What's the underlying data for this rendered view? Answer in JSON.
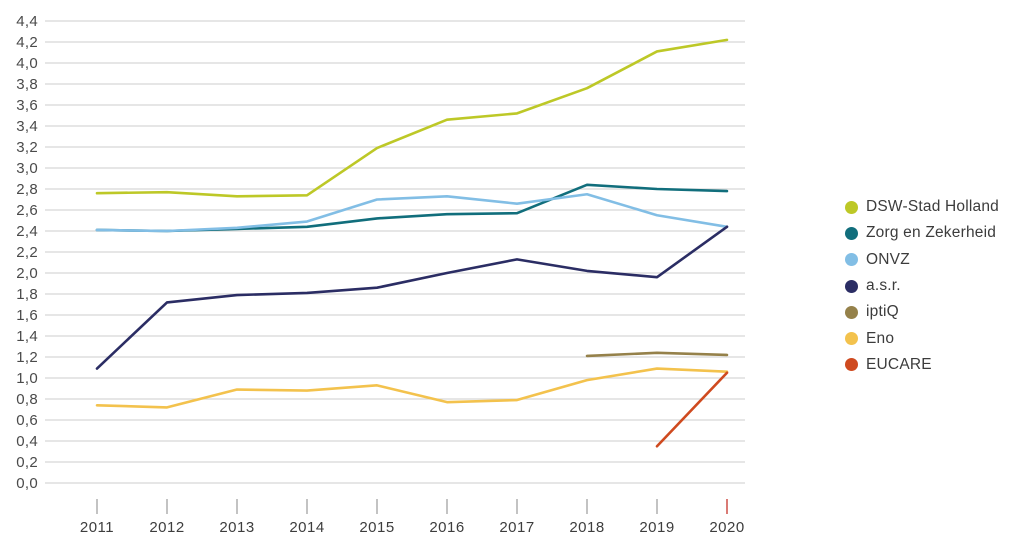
{
  "chart_data": {
    "type": "line",
    "title": "",
    "xlabel": "",
    "ylabel": "",
    "x": [
      "2011",
      "2012",
      "2013",
      "2014",
      "2015",
      "2016",
      "2017",
      "2018",
      "2019",
      "2020"
    ],
    "series": [
      {
        "name": "DSW-Stad Holland",
        "color": "#bdc827",
        "values": [
          2.76,
          2.77,
          2.73,
          2.74,
          3.19,
          3.46,
          3.52,
          3.76,
          4.11,
          4.22
        ]
      },
      {
        "name": "Zorg en Zekerheid",
        "color": "#116e7c",
        "values": [
          2.41,
          2.4,
          2.42,
          2.44,
          2.52,
          2.56,
          2.57,
          2.84,
          2.8,
          2.78
        ]
      },
      {
        "name": "ONVZ",
        "color": "#82bee5",
        "values": [
          2.41,
          2.4,
          2.43,
          2.49,
          2.7,
          2.73,
          2.66,
          2.75,
          2.55,
          2.44
        ]
      },
      {
        "name": "a.s.r.",
        "color": "#2b2d64",
        "values": [
          1.09,
          1.72,
          1.79,
          1.81,
          1.86,
          2.0,
          2.13,
          2.02,
          1.96,
          2.44
        ]
      },
      {
        "name": "iptiQ",
        "color": "#95814a",
        "values": [
          null,
          null,
          null,
          null,
          null,
          null,
          null,
          1.21,
          1.24,
          1.22
        ]
      },
      {
        "name": "Eno",
        "color": "#f3c24d",
        "values": [
          0.74,
          0.72,
          0.89,
          0.88,
          0.93,
          0.77,
          0.79,
          0.98,
          1.09,
          1.06
        ]
      },
      {
        "name": "EUCARE",
        "color": "#cf4a1f",
        "values": [
          null,
          null,
          null,
          null,
          null,
          null,
          null,
          null,
          0.35,
          1.05
        ]
      }
    ],
    "ylim": [
      0.0,
      4.4
    ],
    "ytick_step": 0.2,
    "ytick_labels": [
      "4,4",
      "4,2",
      "4,0",
      "3,8",
      "3,6",
      "3,4",
      "3,2",
      "3,0",
      "2,8",
      "2,6",
      "2,4",
      "2,2",
      "2,0",
      "1,8",
      "1,6",
      "1,4",
      "1,2",
      "1,0",
      "0,8",
      "0,6",
      "0,4",
      "0,2",
      "0,0"
    ],
    "grid": "horizontal",
    "legend_position": "right",
    "highlight_x": "2020",
    "highlight_color": "#d05a52",
    "grid_color": "#d8d8d8",
    "tick_color": "#b4b4b4",
    "axis_label_color": "#4a4a4a",
    "xtick_label_color": "#3d3d3d"
  }
}
